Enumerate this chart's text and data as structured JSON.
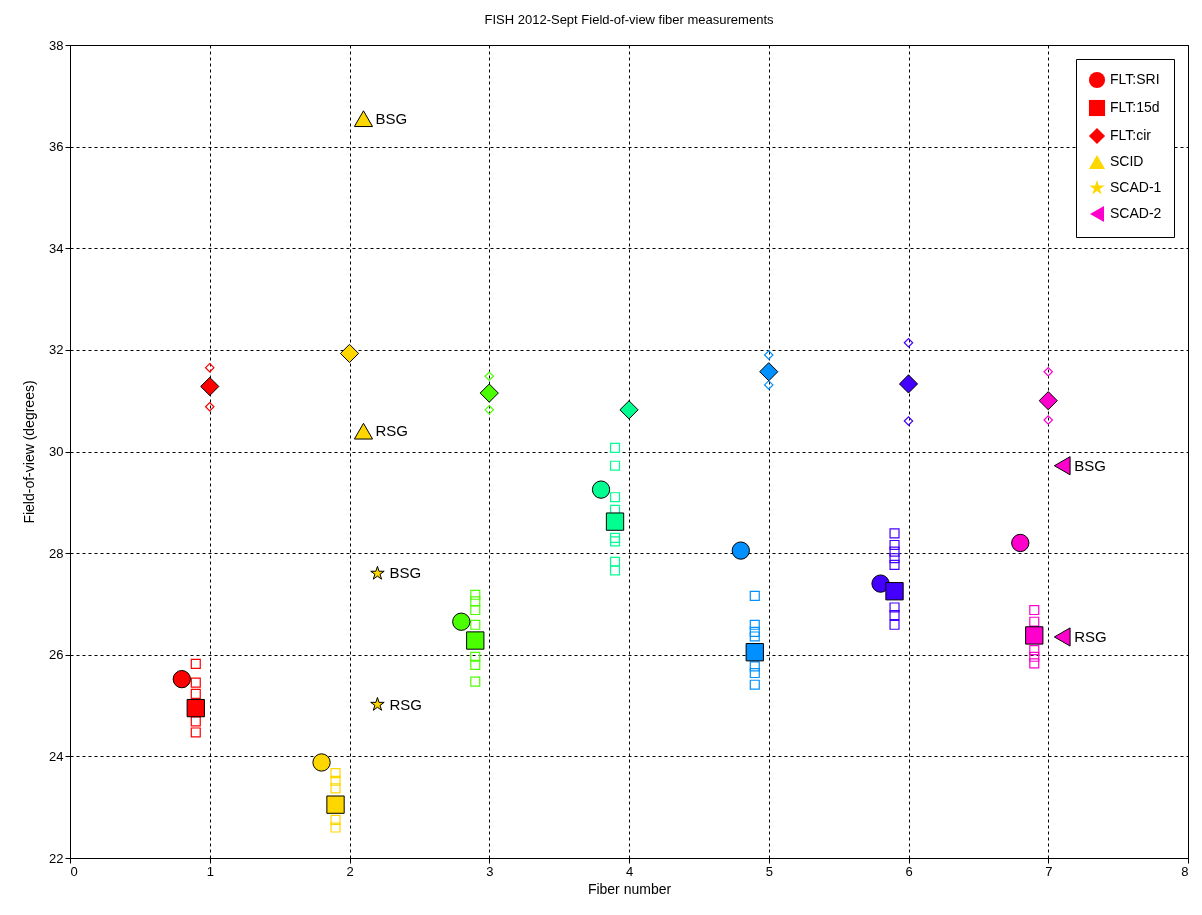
{
  "chart_data": {
    "type": "scatter",
    "title": "FISH 2012-Sept Field-of-view fiber measurements",
    "xlabel": "Fiber number",
    "ylabel": "Field-of-view (degrees)",
    "xlim": [
      0,
      8
    ],
    "xticks": [
      0,
      1,
      2,
      3,
      4,
      5,
      6,
      7,
      8
    ],
    "ylim": [
      22,
      38
    ],
    "yticks": [
      22,
      24,
      26,
      28,
      30,
      32,
      34,
      36,
      38
    ],
    "grid": true,
    "legend": "top right",
    "series": [
      {
        "marker": "square",
        "x": [
          0.9,
          0.9,
          0.9,
          0.9,
          0.9,
          1.9,
          1.9,
          1.9,
          1.9,
          1.9,
          2.9,
          2.9,
          2.9,
          2.9,
          2.9,
          2.9,
          2.9,
          3.9,
          3.9,
          3.9,
          3.9,
          3.9,
          3.9,
          3.9,
          3.9,
          4.9,
          4.9,
          4.9,
          4.9,
          4.9,
          4.9,
          4.9,
          5.9,
          5.9,
          5.9,
          5.9,
          5.9,
          5.9,
          5.9,
          5.9,
          6.9,
          6.9,
          6.9,
          6.9,
          6.9
        ],
        "values": [
          25.82,
          25.45,
          25.23,
          24.69,
          24.47,
          23.67,
          23.52,
          23.37,
          22.75,
          22.6,
          27.18,
          27.05,
          26.88,
          26.59,
          25.96,
          25.8,
          25.47,
          30.07,
          29.72,
          29.1,
          28.85,
          28.3,
          28.23,
          27.83,
          27.66,
          27.16,
          26.59,
          26.45,
          26.36,
          25.77,
          25.64,
          25.41,
          28.39,
          28.16,
          28.03,
          27.9,
          27.77,
          26.93,
          26.78,
          26.59,
          26.88,
          26.65,
          26.09,
          25.96,
          25.83
        ],
        "colors": [
          "#ff0000",
          "#ff0000",
          "#ff0000",
          "#ff0000",
          "#ff0000",
          "#ffd700",
          "#ffd700",
          "#ffd700",
          "#ffd700",
          "#ffd700",
          "#4cff00",
          "#4cff00",
          "#4cff00",
          "#4cff00",
          "#4cff00",
          "#4cff00",
          "#4cff00",
          "#00ff90",
          "#00ff90",
          "#00ff90",
          "#00ff90",
          "#00ff90",
          "#00ff90",
          "#00ff90",
          "#00ff90",
          "#0090ff",
          "#0090ff",
          "#0090ff",
          "#0090ff",
          "#0090ff",
          "#0090ff",
          "#0090ff",
          "#4400ff",
          "#4400ff",
          "#4400ff",
          "#4400ff",
          "#4400ff",
          "#4400ff",
          "#4400ff",
          "#4400ff",
          "#ff00cc",
          "#ff00cc",
          "#ff00cc",
          "#ff00cc",
          "#ff00cc"
        ]
      },
      {
        "marker": "diamond",
        "x": [
          1,
          1,
          3,
          3,
          5,
          5,
          6,
          6,
          7,
          7
        ],
        "values": [
          31.65,
          30.88,
          31.48,
          30.82,
          31.9,
          31.31,
          32.14,
          30.6,
          31.57,
          30.62
        ],
        "colors": [
          "#ff0000",
          "#ff0000",
          "#4cff00",
          "#4cff00",
          "#0090ff",
          "#0090ff",
          "#4400ff",
          "#4400ff",
          "#ff00cc",
          "#ff00cc"
        ]
      },
      {
        "name": "FLT:SRI",
        "marker": "circle",
        "color": "#ff0000",
        "x": [
          0.8,
          1.8,
          2.8,
          3.8,
          4.8,
          5.8,
          6.8
        ],
        "values": [
          25.52,
          23.88,
          26.65,
          29.25,
          28.05,
          27.4,
          28.2
        ],
        "colors": [
          "#ff0000",
          "#ffd700",
          "#4cff00",
          "#00ff90",
          "#0090ff",
          "#4400ff",
          "#ff00cc"
        ]
      },
      {
        "name": "FLT:15d",
        "marker": "square",
        "color": "#ff0000",
        "x": [
          0.9,
          1.9,
          2.9,
          3.9,
          4.9,
          5.9,
          6.9
        ],
        "values": [
          24.95,
          23.05,
          26.28,
          28.62,
          26.05,
          27.25,
          26.38
        ],
        "colors": [
          "#ff0000",
          "#ffd700",
          "#4cff00",
          "#00ff90",
          "#0090ff",
          "#4400ff",
          "#ff00cc"
        ]
      },
      {
        "name": "FLT:cir",
        "marker": "diamond",
        "color": "#ff0000",
        "x": [
          1,
          2,
          3,
          4,
          5,
          6,
          7
        ],
        "values": [
          31.28,
          31.93,
          31.15,
          30.82,
          31.57,
          31.33,
          31.0
        ],
        "colors": [
          "#ff0000",
          "#ffd700",
          "#4cff00",
          "#00ff90",
          "#0090ff",
          "#4400ff",
          "#ff00cc"
        ]
      },
      {
        "name": "SCID",
        "marker": "triangle",
        "color": "#ffd700",
        "x": [
          2.1,
          2.1
        ],
        "values": [
          36.55,
          30.4
        ],
        "colors": [
          "#ffd700",
          "#ffd700"
        ]
      },
      {
        "name": "SCAD-1",
        "marker": "star",
        "color": "#ffd700",
        "x": [
          2.2,
          2.2
        ],
        "values": [
          27.6,
          25.02
        ],
        "colors": [
          "#ffd700",
          "#ffd700"
        ]
      },
      {
        "name": "SCAD-2",
        "marker": "triangle-left",
        "color": "#ff00cc",
        "x": [
          7.1,
          7.1
        ],
        "values": [
          29.72,
          26.35
        ],
        "colors": [
          "#ff00cc",
          "#ff00cc"
        ]
      }
    ],
    "annotations": [
      {
        "text": "BSG",
        "x": 2.1,
        "y": 36.55
      },
      {
        "text": "RSG",
        "x": 2.1,
        "y": 30.4
      },
      {
        "text": "BSG",
        "x": 2.2,
        "y": 27.6
      },
      {
        "text": "RSG",
        "x": 2.2,
        "y": 25.02
      },
      {
        "text": "BSG",
        "x": 7.1,
        "y": 29.72
      },
      {
        "text": "RSG",
        "x": 7.1,
        "y": 26.35
      }
    ]
  }
}
